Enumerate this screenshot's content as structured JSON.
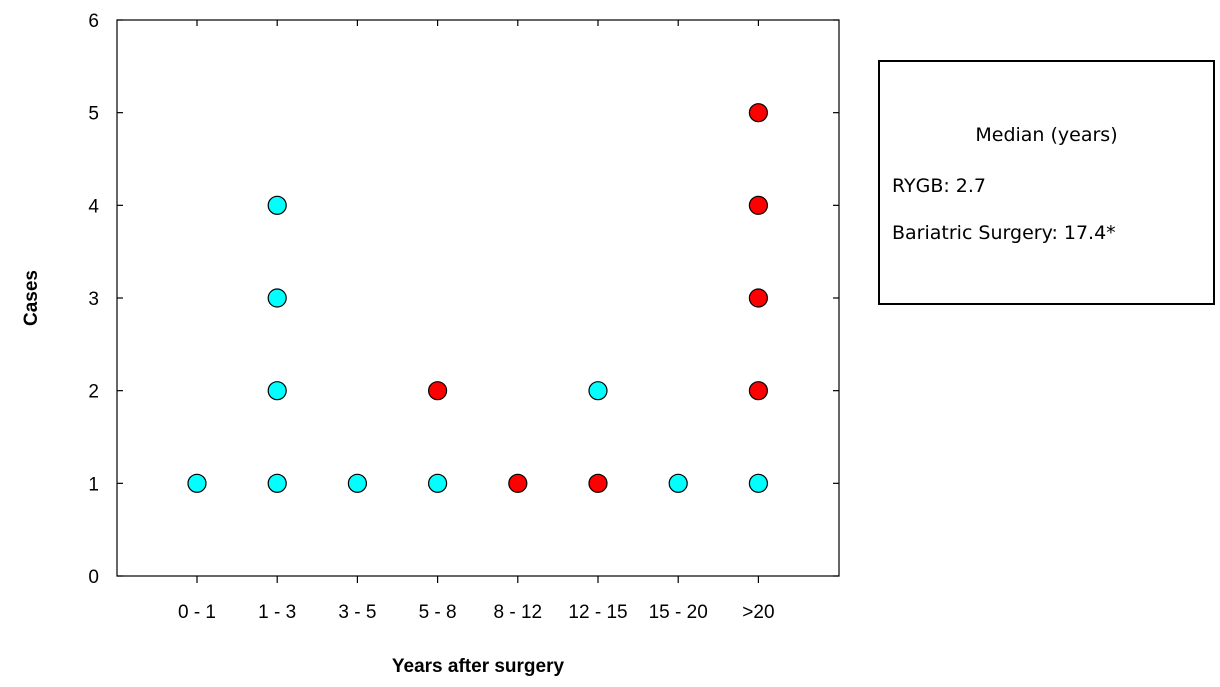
{
  "chart_data": {
    "type": "scatter",
    "categories": [
      "0 - 1",
      "1 - 3",
      "3 - 5",
      "5 - 8",
      "8 - 12",
      "12 - 15",
      "15 - 20",
      ">20"
    ],
    "xlabel": "Years after surgery",
    "ylabel": "Cases",
    "ylim": [
      0,
      6
    ],
    "yticks": [
      "0",
      "1",
      "2",
      "3",
      "4",
      "5",
      "6"
    ],
    "grid": false,
    "series": [
      {
        "color": "#00ffff",
        "points": [
          {
            "x": "0 - 1",
            "y": 1
          },
          {
            "x": "1 - 3",
            "y": 1
          },
          {
            "x": "1 - 3",
            "y": 2
          },
          {
            "x": "1 - 3",
            "y": 3
          },
          {
            "x": "1 - 3",
            "y": 4
          },
          {
            "x": "3 - 5",
            "y": 1
          },
          {
            "x": "5 - 8",
            "y": 1
          },
          {
            "x": "12 - 15",
            "y": 2
          },
          {
            "x": "15 - 20",
            "y": 1
          },
          {
            "x": ">20",
            "y": 1
          }
        ]
      },
      {
        "color": "#ff0000",
        "points": [
          {
            "x": "5 - 8",
            "y": 2
          },
          {
            "x": "8 - 12",
            "y": 1
          },
          {
            "x": "12 - 15",
            "y": 1
          },
          {
            "x": ">20",
            "y": 2
          },
          {
            "x": ">20",
            "y": 3
          },
          {
            "x": ">20",
            "y": 4
          },
          {
            "x": ">20",
            "y": 5
          }
        ]
      }
    ]
  },
  "legend": {
    "title": "Median (years)",
    "line1": "RYGB: 2.7",
    "line2": "Bariatric Surgery: 17.4*"
  }
}
